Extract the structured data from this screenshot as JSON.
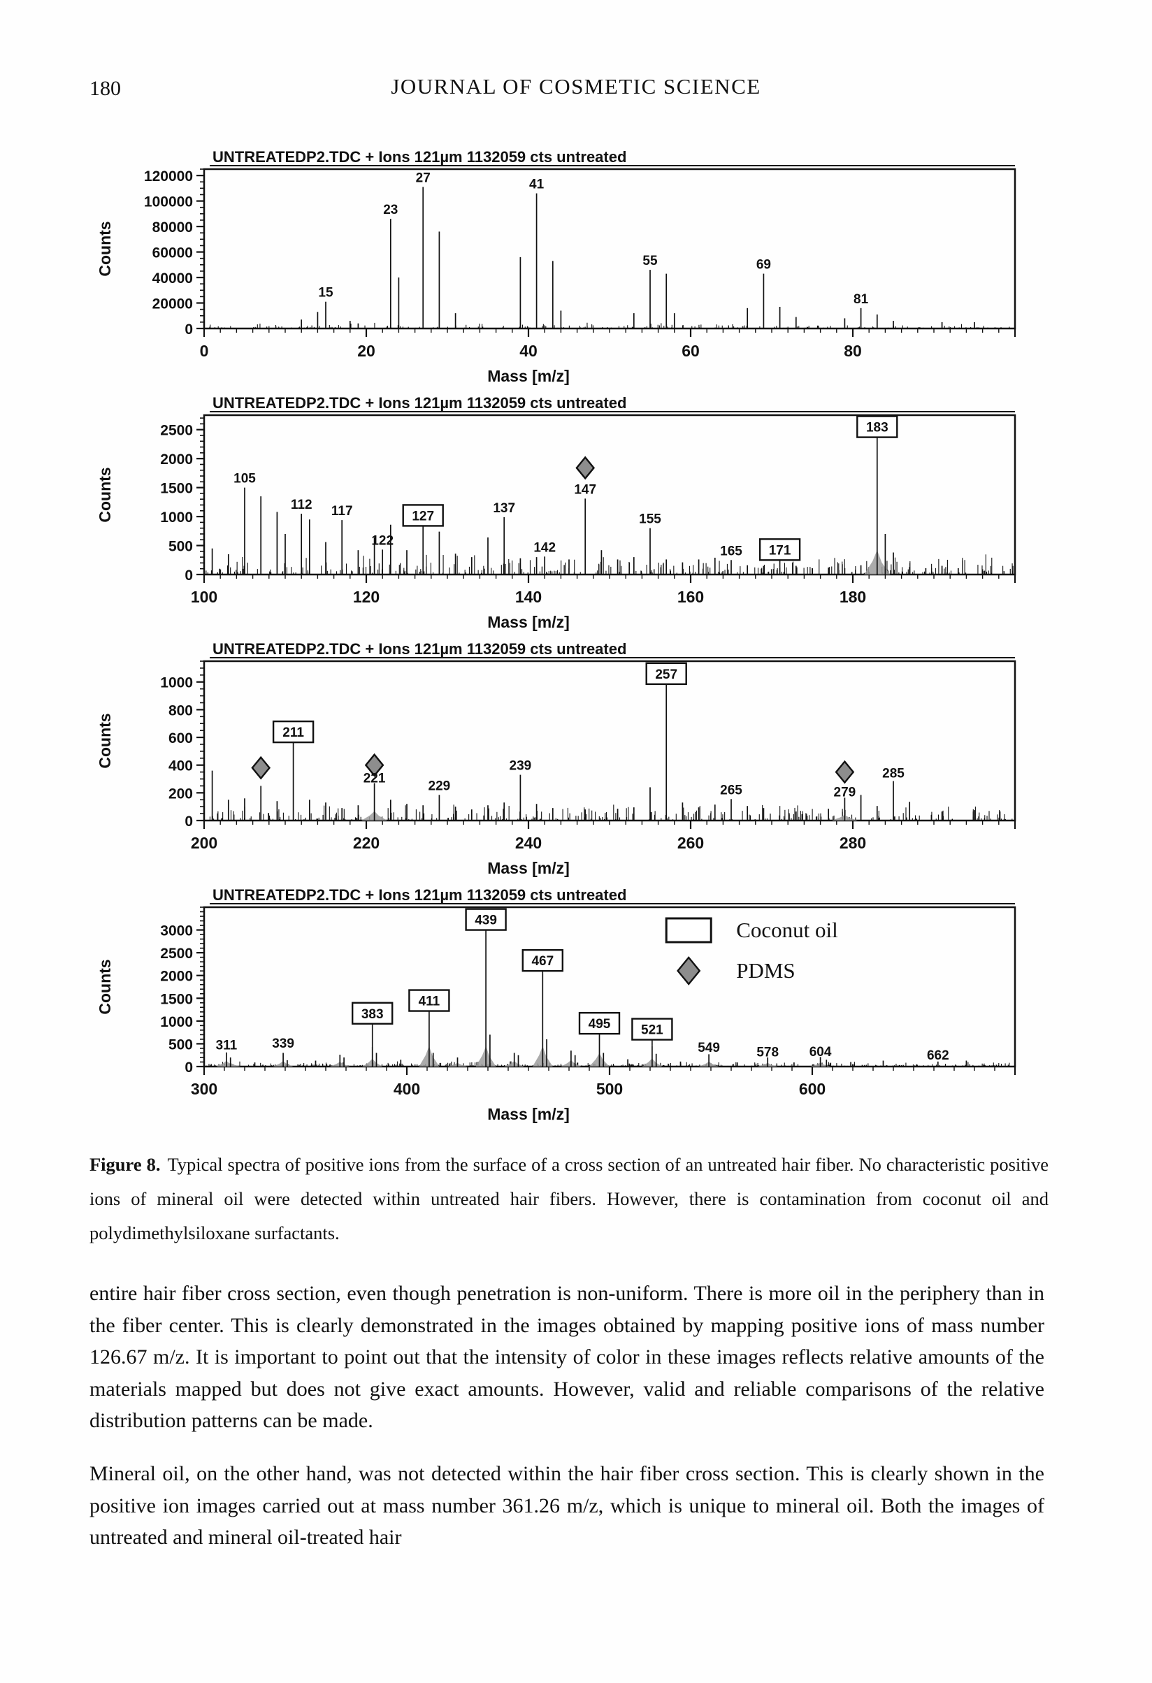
{
  "page": {
    "number": "180",
    "journal": "JOURNAL OF COSMETIC SCIENCE"
  },
  "figure": {
    "caption_label": "Figure 8.",
    "caption_text": "Typical spectra of positive ions from the surface of a cross section of an untreated hair fiber. No characteristic positive ions of mineral oil were detected within untreated hair fibers. However, there is contamination from coconut oil and polydimethylsiloxane surfactants."
  },
  "body": {
    "paragraph1": "entire hair fiber cross section, even though penetration is non-uniform. There is more oil in the periphery than in the fiber center. This is clearly demonstrated in the images obtained by mapping positive ions of mass number 126.67 m/z. It is important to point out that the intensity of color in these images reflects relative amounts of the materials mapped but does not give exact amounts. However, valid and reliable comparisons of the relative distribution patterns can be made.",
    "paragraph2": "Mineral oil, on the other hand, was not detected within the hair fiber cross section. This is clearly shown in the positive ion images carried out at mass number 361.26 m/z, which is unique to mineral oil. Both the images of untreated and mineral oil-treated hair"
  },
  "chart_data": [
    {
      "type": "line",
      "subtype": "mass-spectrum",
      "title": "UNTREATEDP2.TDC + Ions 121µm 1132059 cts untreated",
      "xlabel": "Mass [m/z]",
      "ylabel": "Counts",
      "xlim": [
        0,
        100
      ],
      "ylim": [
        0,
        125000
      ],
      "xticks": [
        0,
        20,
        40,
        60,
        80
      ],
      "yticks": [
        0,
        20000,
        40000,
        60000,
        80000,
        100000,
        120000
      ],
      "x_major": 20,
      "x_minor": 2,
      "y_minor": 5000,
      "noise": {
        "seed": 11,
        "count": 240,
        "frac": 0.035,
        "floor": 0.004
      },
      "peaks": [
        {
          "mz": 12,
          "counts": 7000
        },
        {
          "mz": 14,
          "counts": 13000
        },
        {
          "mz": 15,
          "counts": 21000,
          "label": "15"
        },
        {
          "mz": 18,
          "counts": 6000
        },
        {
          "mz": 19,
          "counts": 4000
        },
        {
          "mz": 23,
          "counts": 86000,
          "label": "23"
        },
        {
          "mz": 24,
          "counts": 40000
        },
        {
          "mz": 27,
          "counts": 111000,
          "label": "27"
        },
        {
          "mz": 29,
          "counts": 76000
        },
        {
          "mz": 31,
          "counts": 12000
        },
        {
          "mz": 39,
          "counts": 56000
        },
        {
          "mz": 41,
          "counts": 106000,
          "label": "41"
        },
        {
          "mz": 43,
          "counts": 53000
        },
        {
          "mz": 44,
          "counts": 14000
        },
        {
          "mz": 53,
          "counts": 12000
        },
        {
          "mz": 55,
          "counts": 46000,
          "label": "55"
        },
        {
          "mz": 57,
          "counts": 43000
        },
        {
          "mz": 58,
          "counts": 12000
        },
        {
          "mz": 67,
          "counts": 16000
        },
        {
          "mz": 69,
          "counts": 43000,
          "label": "69"
        },
        {
          "mz": 71,
          "counts": 17000
        },
        {
          "mz": 73,
          "counts": 9000
        },
        {
          "mz": 79,
          "counts": 8000
        },
        {
          "mz": 81,
          "counts": 16000,
          "label": "81"
        },
        {
          "mz": 83,
          "counts": 11000
        },
        {
          "mz": 85,
          "counts": 6000
        },
        {
          "mz": 91,
          "counts": 5000
        },
        {
          "mz": 95,
          "counts": 5000
        }
      ]
    },
    {
      "type": "line",
      "subtype": "mass-spectrum",
      "title": "UNTREATEDP2.TDC + Ions 121µm 1132059 cts untreated",
      "xlabel": "Mass [m/z]",
      "ylabel": "Counts",
      "xlim": [
        100,
        200
      ],
      "ylim": [
        0,
        2750
      ],
      "xticks": [
        100,
        120,
        140,
        160,
        180
      ],
      "yticks": [
        0,
        500,
        1000,
        1500,
        2000,
        2500
      ],
      "x_major": 20,
      "x_minor": 2,
      "y_minor": 100,
      "cluster_w": 1.6,
      "cluster_h": 0.18,
      "cluster_max": 420,
      "noise": {
        "seed": 22,
        "count": 300,
        "frac": 0.13,
        "floor": 0.01
      },
      "peaks": [
        {
          "mz": 101,
          "counts": 450
        },
        {
          "mz": 103,
          "counts": 350
        },
        {
          "mz": 105,
          "counts": 1500,
          "label": "105"
        },
        {
          "mz": 107,
          "counts": 1350
        },
        {
          "mz": 109,
          "counts": 1080
        },
        {
          "mz": 110,
          "counts": 700
        },
        {
          "mz": 112,
          "counts": 1050,
          "label": "112"
        },
        {
          "mz": 113,
          "counts": 950
        },
        {
          "mz": 115,
          "counts": 560
        },
        {
          "mz": 117,
          "counts": 940,
          "label": "117"
        },
        {
          "mz": 119,
          "counts": 420
        },
        {
          "mz": 121,
          "counts": 640
        },
        {
          "mz": 122,
          "counts": 430,
          "label": "122"
        },
        {
          "mz": 123,
          "counts": 860
        },
        {
          "mz": 125,
          "counts": 420
        },
        {
          "mz": 127,
          "counts": 860,
          "label": "127",
          "marker": "box",
          "label_y": 1020
        },
        {
          "mz": 129,
          "counts": 740
        },
        {
          "mz": 131,
          "counts": 360
        },
        {
          "mz": 133,
          "counts": 300
        },
        {
          "mz": 135,
          "counts": 640
        },
        {
          "mz": 137,
          "counts": 990,
          "label": "137"
        },
        {
          "mz": 139,
          "counts": 280
        },
        {
          "mz": 141,
          "counts": 300
        },
        {
          "mz": 142,
          "counts": 310,
          "label": "142"
        },
        {
          "mz": 145,
          "counts": 260
        },
        {
          "mz": 147,
          "counts": 1310,
          "label": "147",
          "marker": "diamond",
          "label_y": 1480,
          "diamond_y": 1840
        },
        {
          "mz": 149,
          "counts": 420
        },
        {
          "mz": 151,
          "counts": 260
        },
        {
          "mz": 153,
          "counts": 300
        },
        {
          "mz": 155,
          "counts": 800,
          "label": "155"
        },
        {
          "mz": 157,
          "counts": 260
        },
        {
          "mz": 159,
          "counts": 210
        },
        {
          "mz": 161,
          "counts": 260
        },
        {
          "mz": 163,
          "counts": 290
        },
        {
          "mz": 165,
          "counts": 250,
          "label": "165"
        },
        {
          "mz": 167,
          "counts": 160
        },
        {
          "mz": 169,
          "counts": 150
        },
        {
          "mz": 171,
          "counts": 130,
          "label": "171",
          "marker": "box",
          "label_y": 430
        },
        {
          "mz": 173,
          "counts": 150
        },
        {
          "mz": 175,
          "counts": 110
        },
        {
          "mz": 177,
          "counts": 120
        },
        {
          "mz": 179,
          "counts": 110
        },
        {
          "mz": 181,
          "counts": 160
        },
        {
          "mz": 183,
          "counts": 2380,
          "label": "183",
          "marker": "box",
          "label_y": 2550,
          "cluster": true
        },
        {
          "mz": 184,
          "counts": 700
        },
        {
          "mz": 185,
          "counts": 380
        },
        {
          "mz": 187,
          "counts": 130
        },
        {
          "mz": 189,
          "counts": 110
        },
        {
          "mz": 191,
          "counts": 150
        },
        {
          "mz": 193,
          "counts": 110
        },
        {
          "mz": 196,
          "counts": 90
        }
      ]
    },
    {
      "type": "line",
      "subtype": "mass-spectrum",
      "title": "UNTREATEDP2.TDC + Ions 121µm 1132059 cts untreated",
      "xlabel": "Mass [m/z]",
      "ylabel": "Counts",
      "xlim": [
        200,
        300
      ],
      "ylim": [
        0,
        1150
      ],
      "xticks": [
        200,
        220,
        240,
        260,
        280
      ],
      "yticks": [
        0,
        200,
        400,
        600,
        800,
        1000
      ],
      "x_major": 20,
      "x_minor": 2,
      "y_minor": 50,
      "cluster_w": 1.6,
      "cluster_h": 0.25,
      "cluster_max": 120,
      "noise": {
        "seed": 33,
        "count": 300,
        "frac": 0.1,
        "floor": 0.008
      },
      "peaks": [
        {
          "mz": 201,
          "counts": 360
        },
        {
          "mz": 203,
          "counts": 150
        },
        {
          "mz": 205,
          "counts": 160
        },
        {
          "mz": 207,
          "counts": 250,
          "marker": "diamond",
          "diamond_y": 380
        },
        {
          "mz": 209,
          "counts": 140
        },
        {
          "mz": 211,
          "counts": 560,
          "label": "211",
          "marker": "box",
          "label_y": 640
        },
        {
          "mz": 213,
          "counts": 150
        },
        {
          "mz": 215,
          "counts": 130
        },
        {
          "mz": 217,
          "counts": 90
        },
        {
          "mz": 219,
          "counts": 110
        },
        {
          "mz": 221,
          "counts": 270,
          "label": "221",
          "marker": "diamond",
          "label_y": 310,
          "diamond_y": 400,
          "cluster": true
        },
        {
          "mz": 223,
          "counts": 150
        },
        {
          "mz": 225,
          "counts": 120
        },
        {
          "mz": 227,
          "counts": 110
        },
        {
          "mz": 229,
          "counts": 185,
          "label": "229"
        },
        {
          "mz": 231,
          "counts": 100
        },
        {
          "mz": 233,
          "counts": 80
        },
        {
          "mz": 235,
          "counts": 110
        },
        {
          "mz": 237,
          "counts": 130
        },
        {
          "mz": 239,
          "counts": 330,
          "label": "239"
        },
        {
          "mz": 241,
          "counts": 120
        },
        {
          "mz": 243,
          "counts": 90
        },
        {
          "mz": 247,
          "counts": 80
        },
        {
          "mz": 251,
          "counts": 85
        },
        {
          "mz": 253,
          "counts": 95
        },
        {
          "mz": 255,
          "counts": 240
        },
        {
          "mz": 257,
          "counts": 1040,
          "label": "257",
          "marker": "box",
          "label_y": 1060
        },
        {
          "mz": 259,
          "counts": 130
        },
        {
          "mz": 261,
          "counts": 95
        },
        {
          "mz": 263,
          "counts": 115
        },
        {
          "mz": 265,
          "counts": 155,
          "label": "265"
        },
        {
          "mz": 267,
          "counts": 105
        },
        {
          "mz": 269,
          "counts": 90
        },
        {
          "mz": 273,
          "counts": 65
        },
        {
          "mz": 277,
          "counts": 85
        },
        {
          "mz": 279,
          "counts": 165,
          "label": "279",
          "marker": "diamond",
          "label_y": 210,
          "diamond_y": 350,
          "cluster": true
        },
        {
          "mz": 281,
          "counts": 185
        },
        {
          "mz": 283,
          "counts": 105
        },
        {
          "mz": 285,
          "counts": 285,
          "label": "285",
          "label_y": 345
        },
        {
          "mz": 287,
          "counts": 135
        },
        {
          "mz": 291,
          "counts": 65
        },
        {
          "mz": 295,
          "counts": 75
        }
      ]
    },
    {
      "type": "line",
      "subtype": "mass-spectrum",
      "title": "UNTREATEDP2.TDC + Ions 121µm 1132059 cts untreated",
      "xlabel": "Mass [m/z]",
      "ylabel": "Counts",
      "xlim": [
        300,
        700
      ],
      "ylim": [
        0,
        3500
      ],
      "xticks": [
        300,
        400,
        500,
        600
      ],
      "yticks": [
        0,
        500,
        1000,
        1500,
        2000,
        2500,
        3000
      ],
      "x_major": 100,
      "x_minor": 10,
      "y_minor": 100,
      "cluster_w": 5,
      "cluster_h": 0.4,
      "cluster_max": 450,
      "noise": {
        "seed": 44,
        "count": 500,
        "frac": 0.03,
        "floor": 0.004
      },
      "legend": {
        "x_frac": 0.57,
        "items": [
          {
            "marker": "box",
            "label": "Coconut oil"
          },
          {
            "marker": "diamond",
            "label": "PDMS"
          }
        ]
      },
      "peaks": [
        {
          "mz": 311,
          "counts": 310,
          "label": "311",
          "label_y": 480,
          "cluster": true
        },
        {
          "mz": 313,
          "counts": 200,
          "cluster": true
        },
        {
          "mz": 325,
          "counts": 90
        },
        {
          "mz": 339,
          "counts": 300,
          "label": "339",
          "label_y": 520,
          "cluster": true
        },
        {
          "mz": 341,
          "counts": 140
        },
        {
          "mz": 355,
          "counts": 130
        },
        {
          "mz": 367,
          "counts": 260,
          "cluster": true
        },
        {
          "mz": 369,
          "counts": 200
        },
        {
          "mz": 383,
          "counts": 430,
          "label": "383",
          "marker": "box",
          "label_y": 1170,
          "cluster": true
        },
        {
          "mz": 385,
          "counts": 300
        },
        {
          "mz": 397,
          "counts": 150
        },
        {
          "mz": 411,
          "counts": 1330,
          "label": "411",
          "marker": "box",
          "label_y": 1450,
          "cluster": true
        },
        {
          "mz": 413,
          "counts": 300
        },
        {
          "mz": 425,
          "counts": 200,
          "cluster": true
        },
        {
          "mz": 439,
          "counts": 3100,
          "label": "439",
          "marker": "box",
          "label_y": 3230,
          "cluster": true
        },
        {
          "mz": 441,
          "counts": 700
        },
        {
          "mz": 453,
          "counts": 300,
          "cluster": true
        },
        {
          "mz": 455,
          "counts": 250
        },
        {
          "mz": 467,
          "counts": 2050,
          "label": "467",
          "marker": "box",
          "label_y": 2330,
          "cluster": true
        },
        {
          "mz": 469,
          "counts": 600
        },
        {
          "mz": 481,
          "counts": 350,
          "cluster": true
        },
        {
          "mz": 483,
          "counts": 250
        },
        {
          "mz": 495,
          "counts": 740,
          "label": "495",
          "marker": "box",
          "label_y": 950,
          "cluster": true
        },
        {
          "mz": 497,
          "counts": 300
        },
        {
          "mz": 509,
          "counts": 160
        },
        {
          "mz": 521,
          "counts": 450,
          "label": "521",
          "marker": "box",
          "label_y": 820,
          "cluster": true
        },
        {
          "mz": 523,
          "counts": 280
        },
        {
          "mz": 535,
          "counts": 110
        },
        {
          "mz": 549,
          "counts": 270,
          "label": "549",
          "label_y": 430,
          "cluster": true
        },
        {
          "mz": 563,
          "counts": 90
        },
        {
          "mz": 578,
          "counts": 200,
          "label": "578",
          "label_y": 330,
          "cluster": true
        },
        {
          "mz": 591,
          "counts": 90
        },
        {
          "mz": 604,
          "counts": 210,
          "label": "604",
          "label_y": 340,
          "cluster": true
        },
        {
          "mz": 607,
          "counts": 150
        },
        {
          "mz": 619,
          "counts": 100
        },
        {
          "mz": 635,
          "counts": 130
        },
        {
          "mz": 662,
          "counts": 110,
          "label": "662",
          "label_y": 260
        },
        {
          "mz": 676,
          "counts": 130
        }
      ]
    }
  ]
}
